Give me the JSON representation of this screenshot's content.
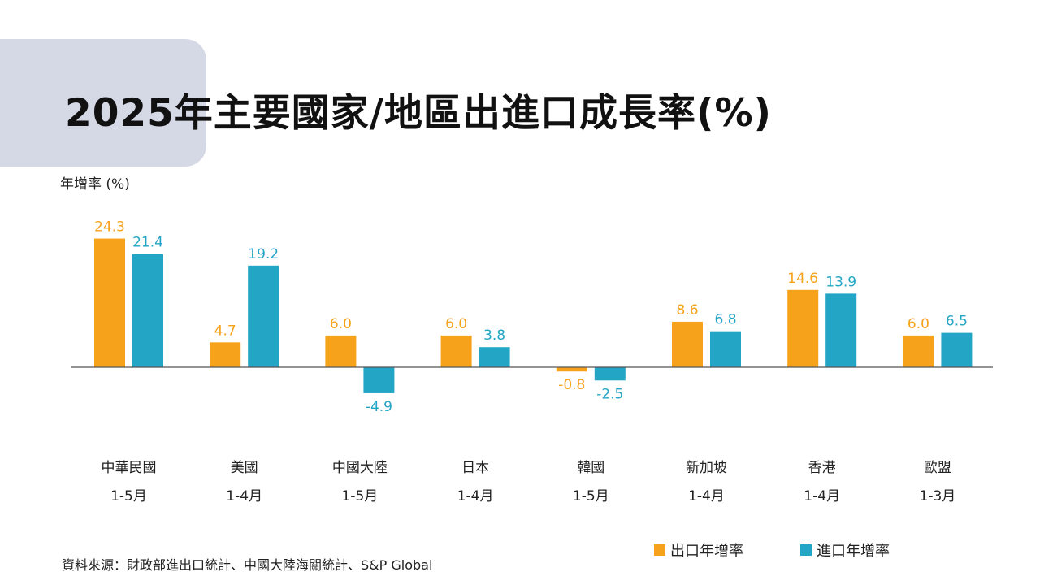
{
  "title": "2025年主要國家/地區出進口成長率(%)",
  "source": "資料來源：財政部進出口統計、中國大陸海關統計、S&P Global",
  "colors": {
    "export": "#F7A21B",
    "import": "#23A5C6",
    "title_tab": "#D5D9E6",
    "axis": "#555555"
  },
  "chart_data": {
    "type": "bar",
    "ylabel": "年增率 (%)",
    "categories": [
      "中華民國",
      "美國",
      "中國大陸",
      "日本",
      "韓國",
      "新加坡",
      "香港",
      "歐盟"
    ],
    "periods": [
      "1-5月",
      "1-4月",
      "1-5月",
      "1-4月",
      "1-5月",
      "1-4月",
      "1-4月",
      "1-3月"
    ],
    "ylim": [
      -10,
      25
    ],
    "grid": false,
    "legend_position": "bottom-right",
    "series": [
      {
        "name": "出口年增率",
        "values": [
          24.3,
          4.7,
          6.0,
          6.0,
          -0.8,
          8.6,
          14.6,
          6.0
        ]
      },
      {
        "name": "進口年增率",
        "values": [
          21.4,
          19.2,
          -4.9,
          3.8,
          -2.5,
          6.8,
          13.9,
          6.5
        ]
      }
    ]
  }
}
